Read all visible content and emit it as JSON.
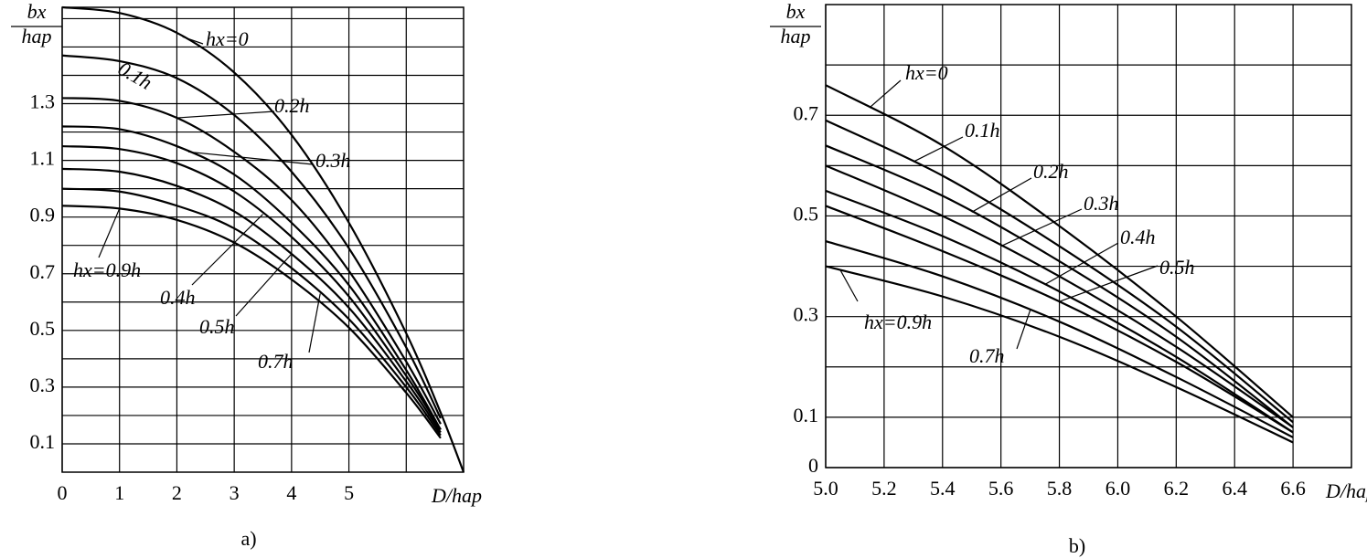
{
  "chart_data": [
    {
      "type": "line",
      "caption": "a)",
      "x_label": "D/hap",
      "y_label_numerator": "bx",
      "y_label_denominator": "hap",
      "x": [
        0,
        1,
        2,
        3,
        4,
        5,
        6,
        6.6,
        7
      ],
      "xlim": [
        0,
        7
      ],
      "ylim": [
        0,
        1.64
      ],
      "xticks": [
        0,
        1,
        2,
        3,
        4,
        5
      ],
      "minor_xticks": [
        6
      ],
      "yticks": [
        0.1,
        0.3,
        0.5,
        0.7,
        0.9,
        1.1,
        1.3
      ],
      "minor_yticks": [
        0.2,
        0.4,
        0.6,
        0.8,
        1.0,
        1.2,
        1.4,
        1.5,
        1.6
      ],
      "grid": true,
      "series": [
        {
          "name": "hx=0",
          "color": "#000000",
          "values": [
            1.64,
            1.62,
            1.55,
            1.41,
            1.19,
            0.88,
            0.49,
            0.21,
            0
          ]
        },
        {
          "name": "0.1h",
          "color": "#000000",
          "values": [
            1.47,
            1.45,
            1.39,
            1.26,
            1.06,
            0.79,
            0.44,
            0.19,
            null
          ]
        },
        {
          "name": "0.2h",
          "color": "#000000",
          "values": [
            1.32,
            1.31,
            1.25,
            1.13,
            0.96,
            0.71,
            0.39,
            0.17,
            null
          ]
        },
        {
          "name": "0.3h",
          "color": "#000000",
          "values": [
            1.22,
            1.21,
            1.15,
            1.05,
            0.88,
            0.66,
            0.36,
            0.15,
            null
          ]
        },
        {
          "name": "0.4h",
          "color": "#000000",
          "values": [
            1.15,
            1.14,
            1.09,
            0.99,
            0.83,
            0.62,
            0.34,
            0.15,
            null
          ]
        },
        {
          "name": "0.5h",
          "color": "#000000",
          "values": [
            1.07,
            1.06,
            1.01,
            0.92,
            0.77,
            0.58,
            0.32,
            0.14,
            null
          ]
        },
        {
          "name": "0.7h",
          "color": "#000000",
          "values": [
            1.0,
            0.99,
            0.94,
            0.86,
            0.72,
            0.54,
            0.3,
            0.13,
            null
          ]
        },
        {
          "name": "hx=0.9h",
          "color": "#000000",
          "values": [
            0.94,
            0.93,
            0.89,
            0.81,
            0.68,
            0.51,
            0.28,
            0.12,
            null
          ]
        }
      ]
    },
    {
      "type": "line",
      "caption": "b)",
      "x_label": "D/hap",
      "y_label_numerator": "bx",
      "y_label_denominator": "hap",
      "x": [
        5.0,
        5.4,
        5.8,
        6.2,
        6.6
      ],
      "xlim": [
        5.0,
        6.8
      ],
      "ylim": [
        0,
        0.92
      ],
      "xticks": [
        {
          "value": 5,
          "label": "5.0"
        },
        5.2,
        5.4,
        5.6,
        5.8,
        {
          "value": 6,
          "label": "6.0"
        },
        6.2,
        6.4,
        6.6
      ],
      "yticks": [
        0,
        0.1,
        0.3,
        0.5,
        0.7
      ],
      "minor_yticks": [
        0.2,
        0.4,
        0.6,
        0.8
      ],
      "grid": true,
      "series": [
        {
          "name": "hx=0",
          "color": "#000000",
          "values": [
            0.76,
            0.64,
            0.48,
            0.3,
            0.1
          ]
        },
        {
          "name": "0.1h",
          "color": "#000000",
          "values": [
            0.69,
            0.58,
            0.44,
            0.28,
            0.09
          ]
        },
        {
          "name": "0.2h",
          "color": "#000000",
          "values": [
            0.64,
            0.54,
            0.41,
            0.26,
            0.08
          ]
        },
        {
          "name": "0.3h",
          "color": "#000000",
          "values": [
            0.6,
            0.5,
            0.38,
            0.24,
            0.08
          ]
        },
        {
          "name": "0.4h",
          "color": "#000000",
          "values": [
            0.55,
            0.46,
            0.35,
            0.22,
            0.07
          ]
        },
        {
          "name": "0.5h",
          "color": "#000000",
          "values": [
            0.52,
            0.43,
            0.33,
            0.21,
            0.07
          ]
        },
        {
          "name": "0.7h",
          "color": "#000000",
          "values": [
            0.45,
            0.38,
            0.29,
            0.18,
            0.06
          ]
        },
        {
          "name": "hx=0.9h",
          "color": "#000000",
          "values": [
            0.4,
            0.34,
            0.26,
            0.16,
            0.05
          ]
        }
      ]
    }
  ]
}
